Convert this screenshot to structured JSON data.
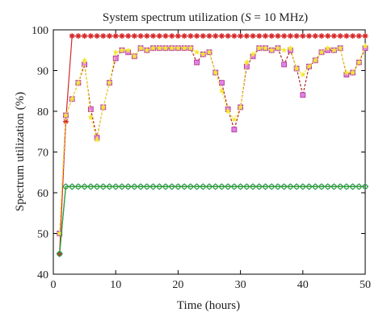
{
  "chart_data": {
    "type": "line",
    "title": "System spectrum utilization (S = 10 MHz)",
    "title_parts": {
      "prefix": "System spectrum utilization (",
      "var": "S",
      "suffix": " = 10 MHz)"
    },
    "xlabel": "Time (hours)",
    "ylabel": "Spectrum utilization (%)",
    "xlim": [
      0,
      50
    ],
    "ylim": [
      40,
      100
    ],
    "xticks": [
      0,
      10,
      20,
      30,
      40,
      50
    ],
    "yticks": [
      40,
      50,
      60,
      70,
      80,
      90,
      100
    ],
    "grid": false,
    "legend": "none",
    "series": [
      {
        "color": "#d62728",
        "marker": "asterisk",
        "x": [
          1,
          2,
          3,
          4,
          5,
          6,
          7,
          8,
          9,
          10,
          11,
          12,
          13,
          14,
          15,
          16,
          17,
          18,
          19,
          20,
          21,
          22,
          23,
          24,
          25,
          26,
          27,
          28,
          29,
          30,
          31,
          32,
          33,
          34,
          35,
          36,
          37,
          38,
          39,
          40,
          41,
          42,
          43,
          44,
          45,
          46,
          47,
          48,
          49,
          50
        ],
        "y": [
          45,
          77.5,
          98.5,
          98.5,
          98.5,
          98.5,
          98.5,
          98.5,
          98.5,
          98.5,
          98.5,
          98.5,
          98.5,
          98.5,
          98.5,
          98.5,
          98.5,
          98.5,
          98.5,
          98.5,
          98.5,
          98.5,
          98.5,
          98.5,
          98.5,
          98.5,
          98.5,
          98.5,
          98.5,
          98.5,
          98.5,
          98.5,
          98.5,
          98.5,
          98.5,
          98.5,
          98.5,
          98.5,
          98.5,
          98.5,
          98.5,
          98.5,
          98.5,
          98.5,
          98.5,
          98.5,
          98.5,
          98.5,
          98.5,
          98.5
        ]
      },
      {
        "color": "#b22222",
        "marker": "square",
        "x": [
          1,
          2,
          3,
          4,
          5,
          6,
          7,
          8,
          9,
          10,
          11,
          12,
          13,
          14,
          15,
          16,
          17,
          18,
          19,
          20,
          21,
          22,
          23,
          24,
          25,
          26,
          27,
          28,
          29,
          30,
          31,
          32,
          33,
          34,
          35,
          36,
          37,
          38,
          39,
          40,
          41,
          42,
          43,
          44,
          45,
          46,
          47,
          48,
          49,
          50
        ],
        "y": [
          50,
          79,
          83,
          87,
          91.5,
          80.5,
          73.5,
          81,
          87,
          93,
          95,
          94.5,
          93.5,
          95.5,
          95,
          95.5,
          95.5,
          95.5,
          95.5,
          95.5,
          95.5,
          95.5,
          92,
          94,
          94.5,
          89.5,
          87,
          80.5,
          75.5,
          81,
          91,
          93.5,
          95.5,
          95.5,
          95,
          95.5,
          91.5,
          95,
          90.5,
          84,
          91,
          92.5,
          94.5,
          95,
          95,
          95.5,
          89,
          89.5,
          92,
          95.5
        ]
      },
      {
        "color": "#f2e830",
        "marker": "star",
        "x": [
          1,
          2,
          3,
          4,
          5,
          6,
          7,
          8,
          9,
          10,
          11,
          12,
          13,
          14,
          15,
          16,
          17,
          18,
          19,
          20,
          21,
          22,
          23,
          24,
          25,
          26,
          27,
          28,
          29,
          30,
          31,
          32,
          33,
          34,
          35,
          36,
          37,
          38,
          39,
          40,
          41,
          42,
          43,
          44,
          45,
          46,
          47,
          48,
          49,
          50
        ],
        "y": [
          50,
          79,
          83,
          87,
          92.5,
          78.5,
          73,
          81,
          87,
          94.5,
          95,
          95,
          93.5,
          95.5,
          95,
          95.5,
          95.5,
          95.5,
          95.5,
          95.5,
          95.5,
          95.5,
          94.5,
          94,
          94.5,
          89.5,
          85,
          80,
          78,
          81,
          92,
          94,
          95.5,
          95.5,
          95,
          95.5,
          95,
          95.5,
          90.5,
          89,
          91,
          92.5,
          94.5,
          95.5,
          95,
          95.5,
          89.5,
          89.5,
          92,
          96
        ]
      },
      {
        "color": "#1f77b4",
        "marker": "diamond",
        "x": [
          1,
          2,
          3,
          4,
          5,
          6,
          7,
          8,
          9,
          10,
          11,
          12,
          13,
          14,
          15,
          16,
          17,
          18,
          19,
          20,
          21,
          22,
          23,
          24,
          25,
          26,
          27,
          28,
          29,
          30,
          31,
          32,
          33,
          34,
          35,
          36,
          37,
          38,
          39,
          40,
          41,
          42,
          43,
          44,
          45,
          46,
          47,
          48,
          49,
          50
        ],
        "y": [
          45,
          61.5,
          61.5,
          61.5,
          61.5,
          61.5,
          61.5,
          61.5,
          61.5,
          61.5,
          61.5,
          61.5,
          61.5,
          61.5,
          61.5,
          61.5,
          61.5,
          61.5,
          61.5,
          61.5,
          61.5,
          61.5,
          61.5,
          61.5,
          61.5,
          61.5,
          61.5,
          61.5,
          61.5,
          61.5,
          61.5,
          61.5,
          61.5,
          61.5,
          61.5,
          61.5,
          61.5,
          61.5,
          61.5,
          61.5,
          61.5,
          61.5,
          61.5,
          61.5,
          61.5,
          61.5,
          61.5,
          61.5,
          61.5,
          61.5
        ]
      },
      {
        "color": "#2ca02c",
        "marker": "circle",
        "x": [
          1,
          2,
          3,
          4,
          5,
          6,
          7,
          8,
          9,
          10,
          11,
          12,
          13,
          14,
          15,
          16,
          17,
          18,
          19,
          20,
          21,
          22,
          23,
          24,
          25,
          26,
          27,
          28,
          29,
          30,
          31,
          32,
          33,
          34,
          35,
          36,
          37,
          38,
          39,
          40,
          41,
          42,
          43,
          44,
          45,
          46,
          47,
          48,
          49,
          50
        ],
        "y": [
          45,
          61.5,
          61.5,
          61.5,
          61.5,
          61.5,
          61.5,
          61.5,
          61.5,
          61.5,
          61.5,
          61.5,
          61.5,
          61.5,
          61.5,
          61.5,
          61.5,
          61.5,
          61.5,
          61.5,
          61.5,
          61.5,
          61.5,
          61.5,
          61.5,
          61.5,
          61.5,
          61.5,
          61.5,
          61.5,
          61.5,
          61.5,
          61.5,
          61.5,
          61.5,
          61.5,
          61.5,
          61.5,
          61.5,
          61.5,
          61.5,
          61.5,
          61.5,
          61.5,
          61.5,
          61.5,
          61.5,
          61.5,
          61.5,
          61.5
        ]
      }
    ],
    "marker_fill": {
      "square": "#e080e8"
    }
  }
}
